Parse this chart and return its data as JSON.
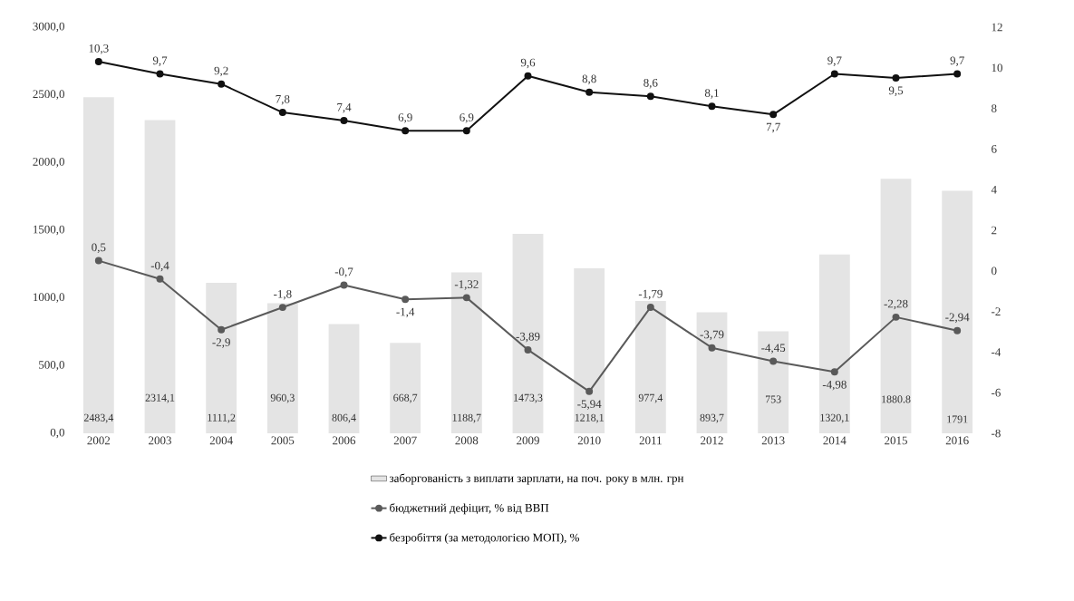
{
  "chart_data": {
    "type": "bar",
    "categories": [
      "2002",
      "2003",
      "2004",
      "2005",
      "2006",
      "2007",
      "2008",
      "2009",
      "2010",
      "2011",
      "2012",
      "2013",
      "2014",
      "2015",
      "2016"
    ],
    "series": [
      {
        "name": "заборгованість з виплати зарплати, на поч. року в млн. грн",
        "color": "#e4e4e4",
        "values": [
          2483.4,
          2314.1,
          1111.2,
          960.3,
          806.4,
          668.7,
          1188.7,
          1473.3,
          1218.1,
          977.4,
          893.7,
          753,
          1320.1,
          1880.8,
          1791
        ],
        "value_labels": [
          "2483,4",
          "2314,1",
          "1111,2",
          "960,3",
          "806,4",
          "668,7",
          "1188,7",
          "1473,3",
          "1218,1",
          "977,4",
          "893,7",
          "753",
          "1320,1",
          "1880.8",
          "1791"
        ]
      },
      {
        "name": "бюджетний дефіцит, % від ВВП",
        "type": "line",
        "axis": "y2",
        "color": "#5a5a5a",
        "values": [
          0.5,
          -0.4,
          -2.9,
          -1.8,
          -0.7,
          -1.4,
          -1.32,
          -3.89,
          -5.94,
          -1.79,
          -3.79,
          -4.45,
          -4.98,
          -2.28,
          -2.94
        ],
        "value_labels": [
          "0,5",
          "-0,4",
          "-2,9",
          "-1,8",
          "-0,7",
          "-1,4",
          "-1,32",
          "-3,89",
          "-5,94",
          "-1,79",
          "-3,79",
          "-4,45",
          "-4,98",
          "-2,28",
          "-2,94"
        ]
      },
      {
        "name": "безробіття (за методологією МОП), %",
        "type": "line",
        "axis": "y2",
        "color": "#111111",
        "values": [
          10.3,
          9.7,
          9.2,
          7.8,
          7.4,
          6.9,
          6.9,
          9.6,
          8.8,
          8.6,
          8.1,
          7.7,
          9.7,
          9.5,
          9.7
        ],
        "value_labels": [
          "10,3",
          "9,7",
          "9,2",
          "7,8",
          "7,4",
          "6,9",
          "6,9",
          "9,6",
          "8,8",
          "8,6",
          "8,1",
          "7,7",
          "9,7",
          "9,5",
          "9,7"
        ]
      }
    ],
    "ylim": [
      0,
      3000
    ],
    "yticks": [
      {
        "value": 0,
        "label": "0,0"
      },
      {
        "value": 500,
        "label": "500,0"
      },
      {
        "value": 1000,
        "label": "1000,0"
      },
      {
        "value": 1500,
        "label": "1500,0"
      },
      {
        "value": 2000,
        "label": "2000,0"
      },
      {
        "value": 2500,
        "label": "2500,0"
      },
      {
        "value": 3000,
        "label": "3000,0"
      }
    ],
    "y2lim": [
      -8,
      12
    ],
    "y2ticks": [
      -8,
      -6,
      -4,
      -2,
      0,
      2,
      4,
      6,
      8,
      10,
      12
    ],
    "marker": "circle",
    "legend": "bottom"
  }
}
